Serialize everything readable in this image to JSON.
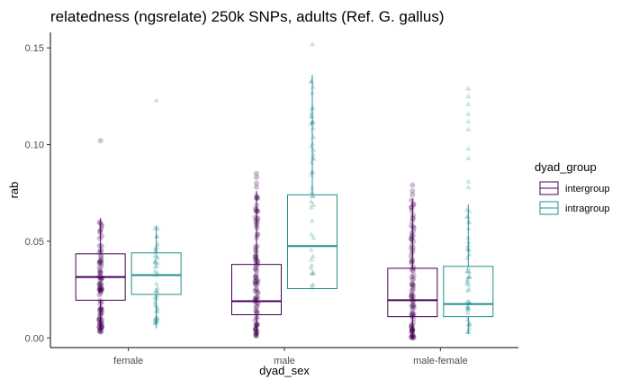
{
  "chart_data": {
    "type": "box",
    "title": "relatedness (ngsrelate) 250k SNPs, adults (Ref. G. gallus)",
    "xlabel": "dyad_sex",
    "ylabel": "rab",
    "categories": [
      "female",
      "male",
      "male-female"
    ],
    "ylim": [
      -0.005,
      0.158
    ],
    "yticks": [
      0.0,
      0.05,
      0.1,
      0.15
    ],
    "ytick_labels": [
      "0.00",
      "0.05",
      "0.10",
      "0.15"
    ],
    "grid": false,
    "legend": {
      "title": "dyad_group",
      "position": "right"
    },
    "series": [
      {
        "name": "intergroup",
        "color": "#440154",
        "point_shape": "circle",
        "boxes": [
          {
            "category": "female",
            "whisker_low": 0.004,
            "q1": 0.0195,
            "median": 0.0315,
            "q3": 0.0435,
            "whisker_high": 0.062,
            "outliers": [
              0.102
            ],
            "point_range": [
              0.003,
              0.063
            ]
          },
          {
            "category": "male",
            "whisker_low": 0.001,
            "q1": 0.012,
            "median": 0.019,
            "q3": 0.038,
            "whisker_high": 0.076,
            "outliers": [
              0.078,
              0.08,
              0.083,
              0.085
            ],
            "point_range": [
              0.001,
              0.076
            ]
          },
          {
            "category": "male-female",
            "whisker_low": 0.0,
            "q1": 0.011,
            "median": 0.0195,
            "q3": 0.036,
            "whisker_high": 0.072,
            "outliers": [
              0.074,
              0.076,
              0.079
            ],
            "point_range": [
              0.0,
              0.072
            ]
          }
        ]
      },
      {
        "name": "intragroup",
        "color": "#21908C",
        "point_shape": "triangle",
        "boxes": [
          {
            "category": "female",
            "whisker_low": 0.005,
            "q1": 0.0225,
            "median": 0.0325,
            "q3": 0.044,
            "whisker_high": 0.058,
            "outliers": [
              0.123
            ],
            "point_range": [
              0.005,
              0.058
            ]
          },
          {
            "category": "male",
            "whisker_low": 0.025,
            "q1": 0.0255,
            "median": 0.0475,
            "q3": 0.074,
            "whisker_high": 0.136,
            "outliers": [
              0.152
            ],
            "point_range": [
              0.025,
              0.136
            ]
          },
          {
            "category": "male-female",
            "whisker_low": 0.002,
            "q1": 0.011,
            "median": 0.0175,
            "q3": 0.037,
            "whisker_high": 0.069,
            "outliers": [
              0.078,
              0.081,
              0.093,
              0.098,
              0.108,
              0.112,
              0.116,
              0.121,
              0.125,
              0.129
            ],
            "point_range": [
              0.002,
              0.069
            ]
          }
        ]
      }
    ]
  }
}
